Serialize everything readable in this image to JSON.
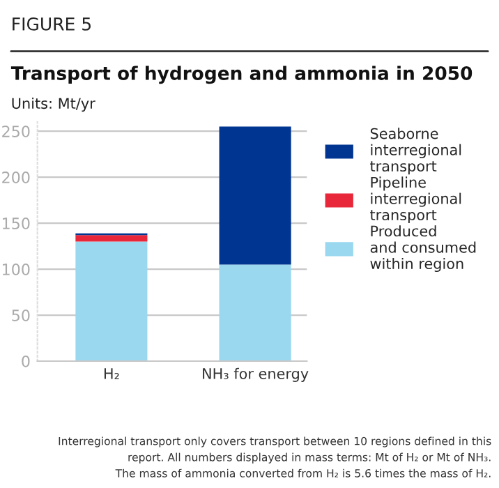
{
  "chart_data": {
    "type": "bar",
    "title": "Transport of hydrogen and ammonia in 2050",
    "subtitle": "Units: Mt/yr",
    "annotations": [
      "FIGURE 5",
      "Interregional transport only covers transport between 10 regions defined in this",
      "report. All numbers displayed in mass terms: Mt of H₂ or Mt of NH₃.",
      "The mass of ammonia converted from H₂ is 5.6 times the mass of H₂."
    ],
    "categories": [
      "H₂",
      "NH₃ for energy"
    ],
    "stacked": true,
    "series": [
      {
        "name": "Produced\nand consumed\nwithin region",
        "color": "#9ad8ef",
        "values": [
          130,
          105
        ]
      },
      {
        "name": "Pipeline\ninterregional\ntransport",
        "color": "#e8283a",
        "values": [
          7,
          0
        ]
      },
      {
        "name": "Seaborne\ninterregional\ntransport",
        "color": "#003591",
        "values": [
          2,
          150
        ]
      }
    ],
    "ylim": [
      0,
      260
    ],
    "yticks": [
      0,
      50,
      100,
      150,
      200,
      250
    ],
    "grid": "y",
    "legend": "right"
  }
}
